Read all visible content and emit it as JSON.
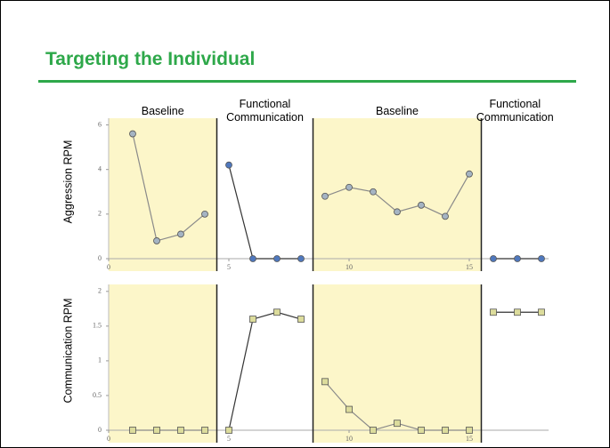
{
  "title": "Targeting the Individual",
  "phases": [
    {
      "label": "Baseline",
      "range": [
        0,
        4.5
      ],
      "background": "#fcf6c9"
    },
    {
      "label": "Functional Communication",
      "range": [
        4.5,
        8.5
      ],
      "background": "#ffffff"
    },
    {
      "label": "Baseline",
      "range": [
        8.5,
        15.5
      ],
      "background": "#fcf6c9"
    },
    {
      "label": "Functional Communication",
      "range": [
        15.5,
        18.3
      ],
      "background": "#ffffff"
    }
  ],
  "chart_data": [
    {
      "type": "line",
      "ylabel": "Aggression RPM",
      "marker": "circle",
      "x": [
        1,
        2,
        3,
        4,
        5,
        6,
        7,
        8,
        9,
        10,
        11,
        12,
        13,
        14,
        15,
        16,
        17,
        18
      ],
      "values": [
        5.6,
        0.8,
        1.1,
        2.0,
        4.2,
        0,
        0,
        0,
        2.8,
        3.2,
        3.0,
        2.1,
        2.4,
        1.9,
        3.8,
        0,
        0,
        0
      ],
      "marker_colors": [
        "#a5b4c3",
        "#4f78bd",
        "#a5b4c3",
        "#4f78bd"
      ],
      "line_colors": [
        "#8a8a8a",
        "#333333",
        "#8a8a8a",
        "#333333"
      ],
      "xlim": [
        0,
        18.3
      ],
      "xticks": [
        0,
        5,
        10,
        15
      ],
      "ylim": [
        0,
        6.3
      ],
      "yticks": [
        0,
        2,
        4,
        6
      ]
    },
    {
      "type": "line",
      "ylabel": "Communication RPM",
      "marker": "square",
      "x": [
        1,
        2,
        3,
        4,
        5,
        6,
        7,
        8,
        9,
        10,
        11,
        12,
        13,
        14,
        15,
        16,
        17,
        18
      ],
      "values": [
        0,
        0,
        0,
        0,
        0,
        1.6,
        1.7,
        1.6,
        0.7,
        0.3,
        0,
        0.1,
        0,
        0,
        0,
        1.7,
        1.7,
        1.7
      ],
      "marker_colors": [
        "#dcdc9c",
        "#dcdc9c",
        "#dcdc9c",
        "#dcdc9c"
      ],
      "line_colors": [
        "#8a8a8a",
        "#333333",
        "#8a8a8a",
        "#333333"
      ],
      "xlim": [
        0,
        18.3
      ],
      "xticks": [
        0,
        5,
        10,
        15
      ],
      "ylim": [
        0,
        2.1
      ],
      "yticks": [
        0,
        0.5,
        1,
        1.5,
        2
      ]
    }
  ]
}
